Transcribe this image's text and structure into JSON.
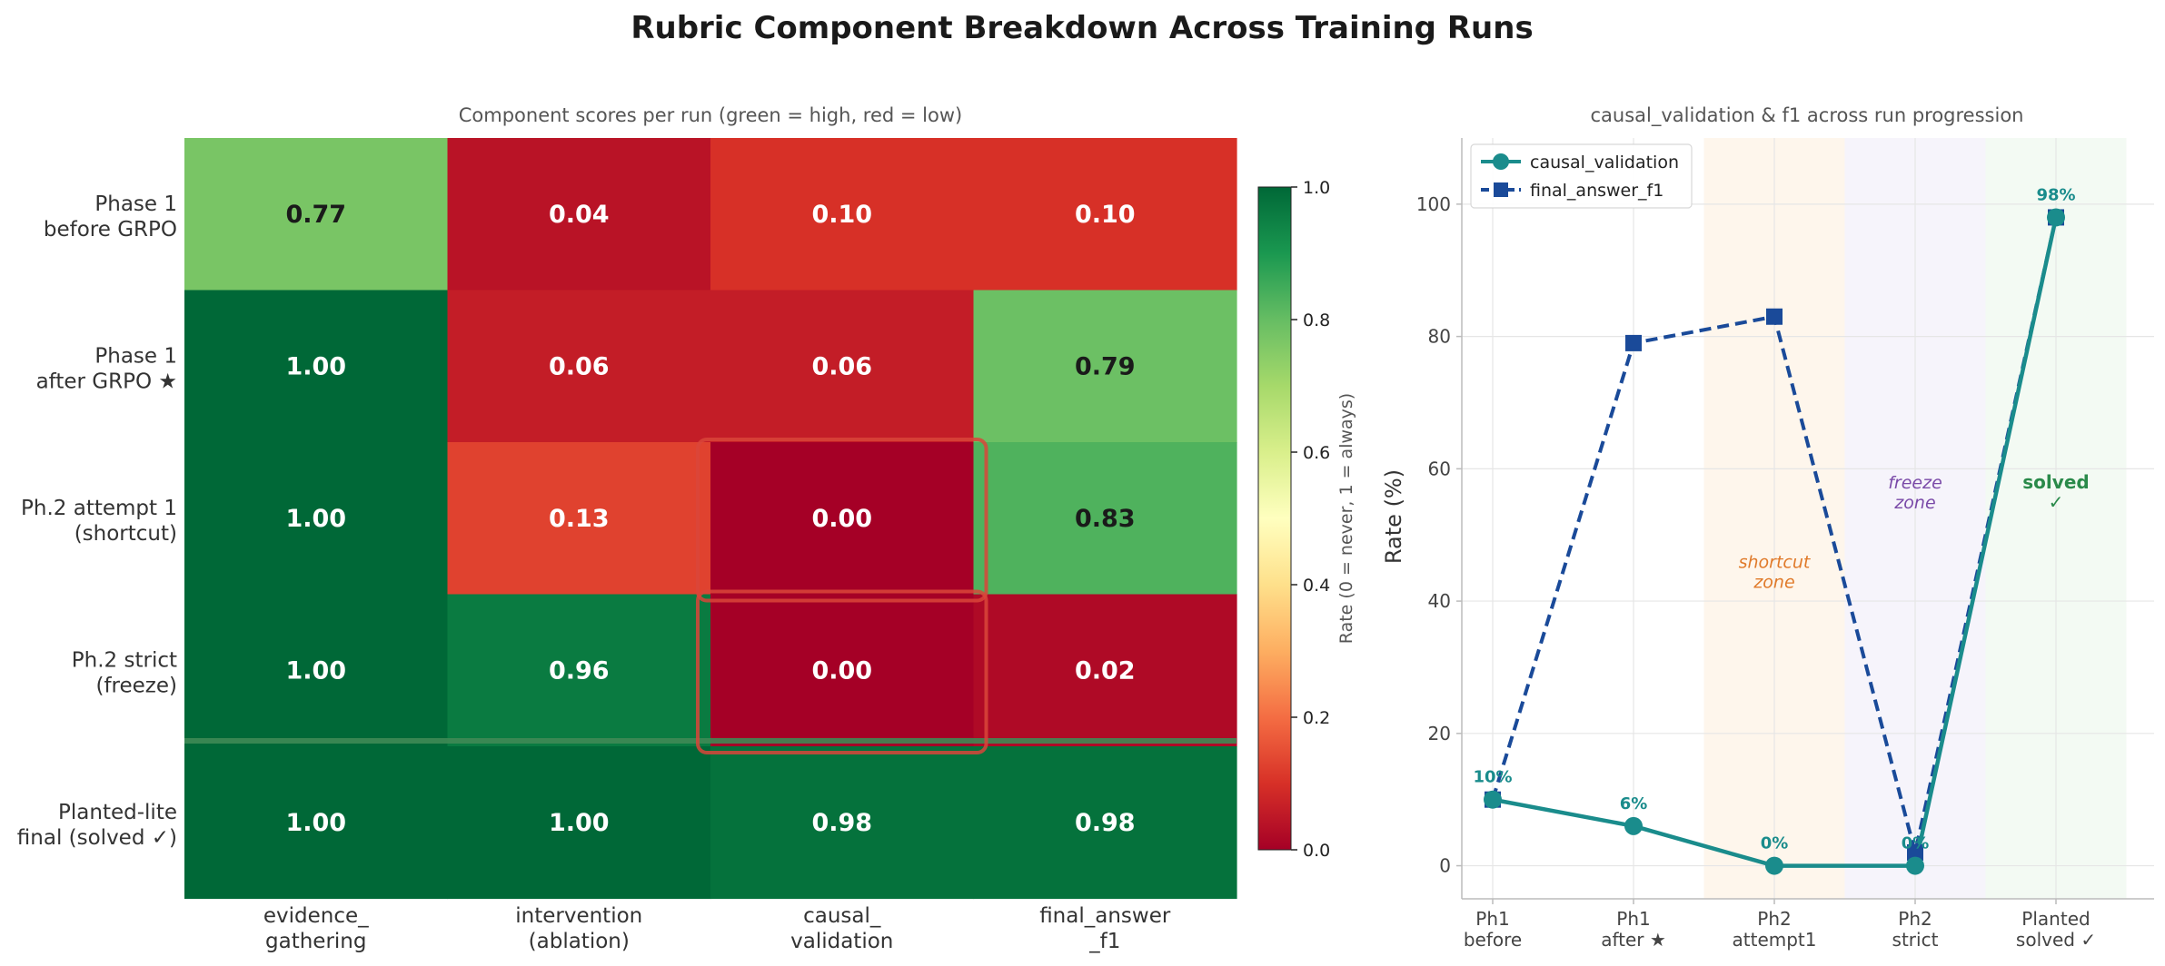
{
  "figure": {
    "title": "Rubric Component Breakdown Across Training Runs"
  },
  "chart_data": [
    {
      "type": "heatmap",
      "title": "Component scores per run  (green = high, red = low)",
      "rows": [
        [
          "Phase 1",
          "before GRPO"
        ],
        [
          "Phase 1",
          "after GRPO ★"
        ],
        [
          "Ph.2 attempt 1",
          "(shortcut)"
        ],
        [
          "Ph.2 strict",
          "(freeze)"
        ],
        [
          "Planted-lite",
          "final (solved ✓)"
        ]
      ],
      "columns": [
        [
          "evidence_",
          "gathering"
        ],
        [
          "intervention",
          "(ablation)"
        ],
        [
          "causal_",
          "validation"
        ],
        [
          "final_answer",
          "_f1"
        ]
      ],
      "values": [
        [
          0.77,
          0.04,
          0.1,
          0.1
        ],
        [
          1.0,
          0.06,
          0.06,
          0.79
        ],
        [
          1.0,
          0.13,
          0.0,
          0.83
        ],
        [
          1.0,
          0.96,
          0.0,
          0.02
        ],
        [
          1.0,
          1.0,
          0.98,
          0.98
        ]
      ],
      "cell_labels": [
        [
          "0.77",
          "0.04",
          "0.10",
          "0.10"
        ],
        [
          "1.00",
          "0.06",
          "0.06",
          "0.79"
        ],
        [
          "1.00",
          "0.13",
          "0.00",
          "0.83"
        ],
        [
          "1.00",
          "0.96",
          "0.00",
          "0.02"
        ],
        [
          "1.00",
          "1.00",
          "0.98",
          "0.98"
        ]
      ],
      "highlighted_cells": [
        [
          2,
          2
        ],
        [
          3,
          2
        ]
      ],
      "highlight_color": "#d9453a",
      "colormap": "RdYlGn",
      "vmin": 0,
      "vmax": 1,
      "colorbar": {
        "label": "Rate (0 = never, 1 = always)",
        "ticks": [
          "0.0",
          "0.2",
          "0.4",
          "0.6",
          "0.8",
          "1.0"
        ]
      }
    },
    {
      "type": "line",
      "title": "causal_validation & f1  across run progression",
      "xlabel": "",
      "ylabel": "Rate (%)",
      "ylim": [
        -5,
        110
      ],
      "yticks": [
        "0",
        "20",
        "40",
        "60",
        "80",
        "100"
      ],
      "grid": true,
      "legend_position": "top-left",
      "categories": [
        [
          "Ph1",
          "before"
        ],
        [
          "Ph1",
          "after ★"
        ],
        [
          "Ph2",
          "attempt1"
        ],
        [
          "Ph2",
          "strict"
        ],
        [
          "Planted",
          "solved ✓"
        ]
      ],
      "series": [
        {
          "name": "causal_validation",
          "values": [
            10,
            6,
            0,
            0,
            98
          ],
          "labels": [
            "10%",
            "6%",
            "0%",
            "0%",
            "98%"
          ],
          "color": "#1a8c8c",
          "marker": "circle",
          "style": "solid"
        },
        {
          "name": "final_answer_f1",
          "values": [
            10,
            79,
            83,
            2,
            98
          ],
          "color": "#1a4a99",
          "marker": "square",
          "style": "dashed"
        }
      ],
      "zones": [
        {
          "from": 1.5,
          "to": 2.5,
          "lines": [
            "shortcut",
            "zone"
          ],
          "color": "#f5a030",
          "text_color": "#e07a2a",
          "style": "italic"
        },
        {
          "from": 2.5,
          "to": 3.5,
          "lines": [
            "freeze",
            "zone"
          ],
          "color": "#9a80d0",
          "text_color": "#7a4aa8",
          "style": "italic"
        },
        {
          "from": 3.5,
          "to": 4.5,
          "lines": [
            "solved",
            "✓"
          ],
          "color": "#7cc47c",
          "text_color": "#2a8a4a",
          "style": "bold"
        }
      ]
    }
  ]
}
